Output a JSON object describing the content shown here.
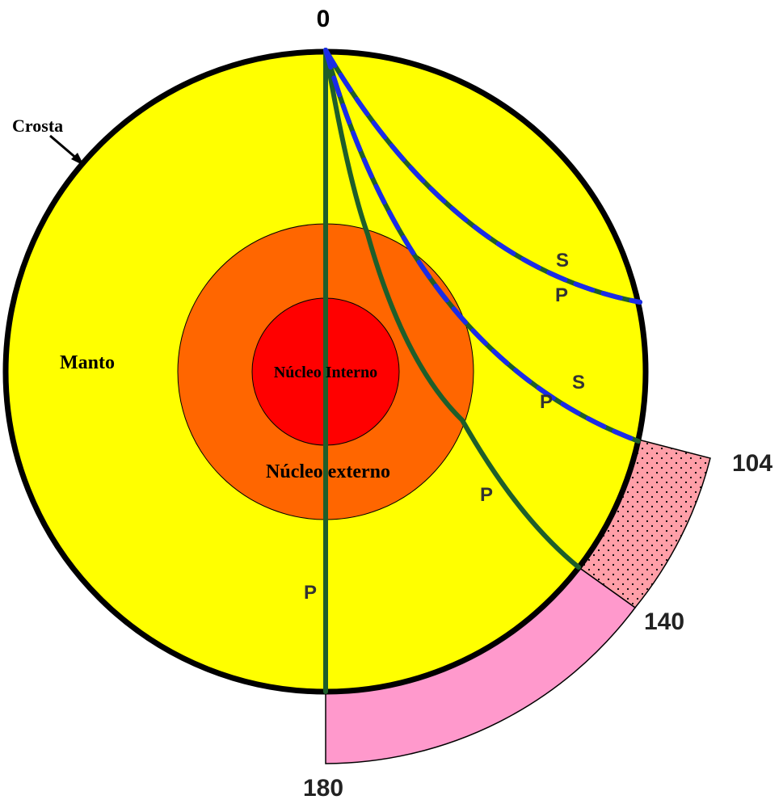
{
  "colors": {
    "mantle": "#FFFF00",
    "outer_core": "#FF6600",
    "inner_core": "#FF0000",
    "crust_outline": "#000000",
    "p_wave": "#1E5E2A",
    "s_wave": "#1A2BE8",
    "shadow_zone": "#FF9FA8",
    "p_only_zone": "#FF99CC"
  },
  "layers": {
    "crust": "Crosta",
    "mantle": "Manto",
    "outer_core": "Núcleo externo",
    "inner_core": "Núcleo Interno"
  },
  "angles": {
    "top": "0",
    "shadow_start": "104",
    "shadow_end": "140",
    "bottom": "180"
  },
  "wave_labels": {
    "s1": "S",
    "p1": "P",
    "s2": "S",
    "p2": "P",
    "p3": "P",
    "p4": "P"
  }
}
